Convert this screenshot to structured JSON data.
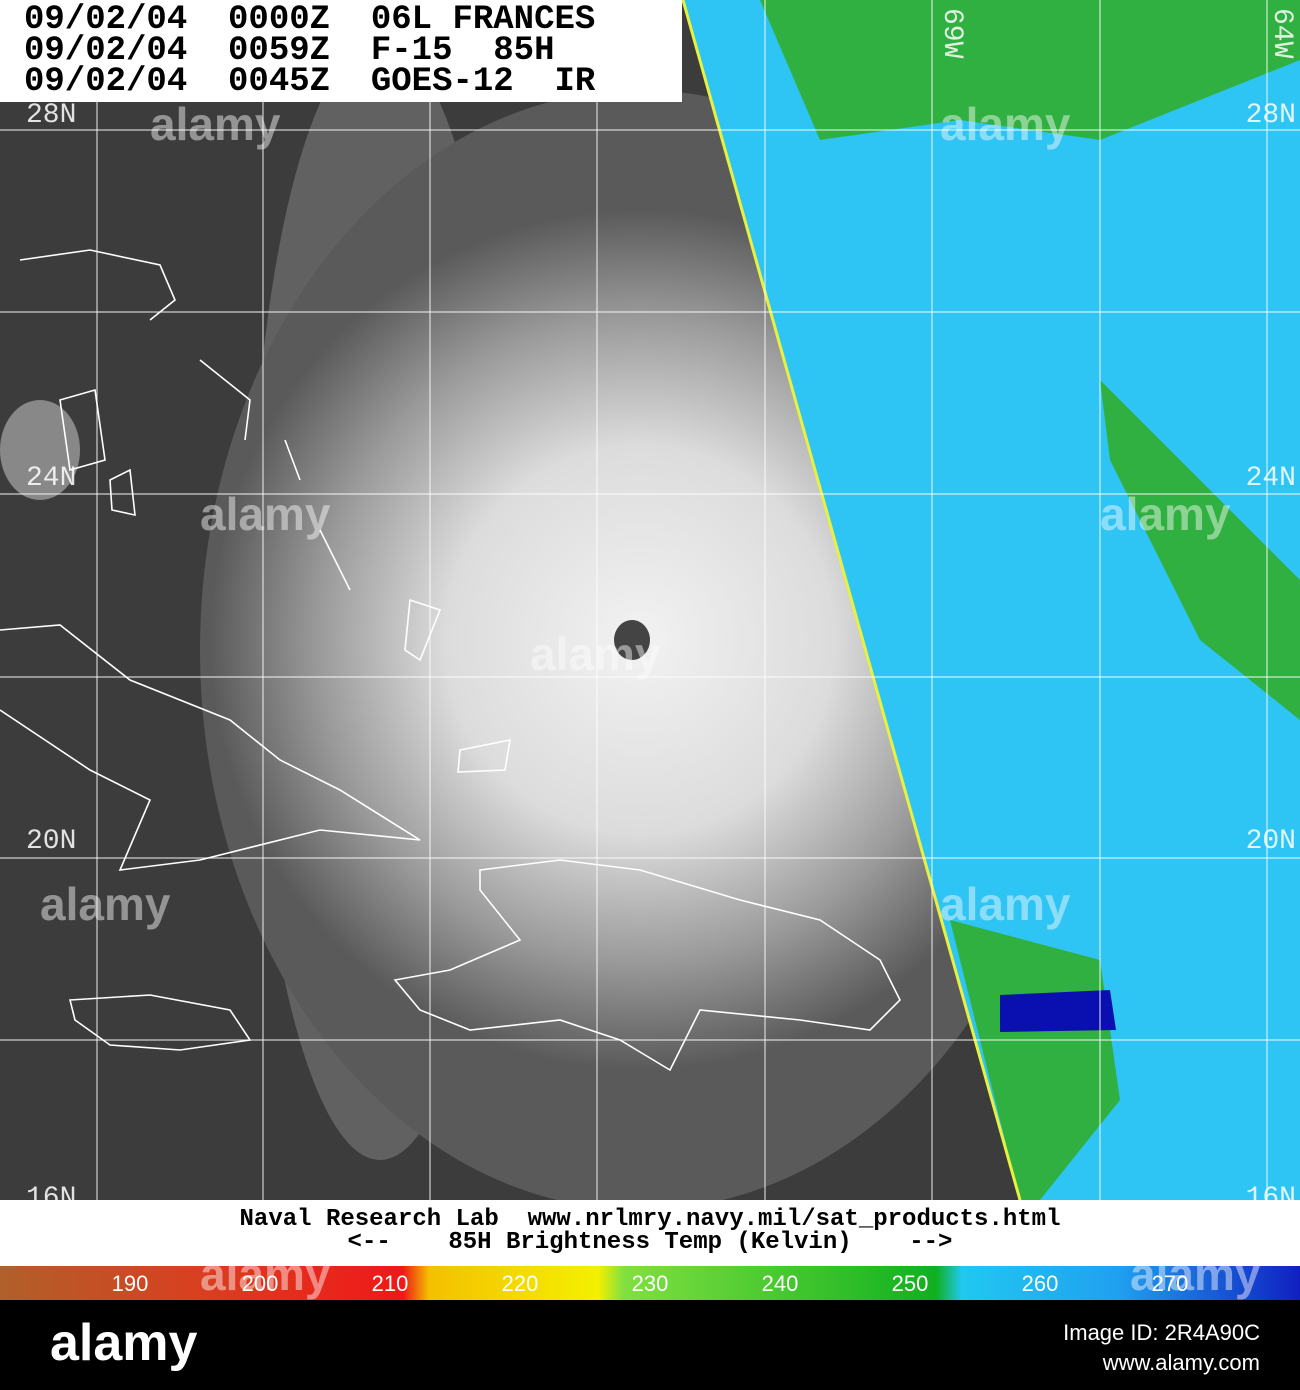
{
  "header": {
    "lines": [
      "09/02/04  0000Z  06L FRANCES",
      "09/02/04  0059Z  F-15  85H",
      "09/02/04  0045Z  GOES-12  IR"
    ]
  },
  "map": {
    "lat_labels": [
      "28N",
      "24N",
      "20N",
      "16N"
    ],
    "lon_labels": [
      "69W",
      "64W"
    ]
  },
  "footer": {
    "credit": "Naval Research Lab  www.nrlmry.navy.mil/sat_products.html",
    "legend_title": "<--    85H Brightness Temp (Kelvin)    -->"
  },
  "colorbar": {
    "labels": [
      190,
      200,
      210,
      220,
      230,
      240,
      250,
      260,
      270
    ]
  },
  "watermark": {
    "logo": "alamy",
    "image_id": "Image ID: 2R4A90C",
    "site": "www.alamy.com"
  }
}
